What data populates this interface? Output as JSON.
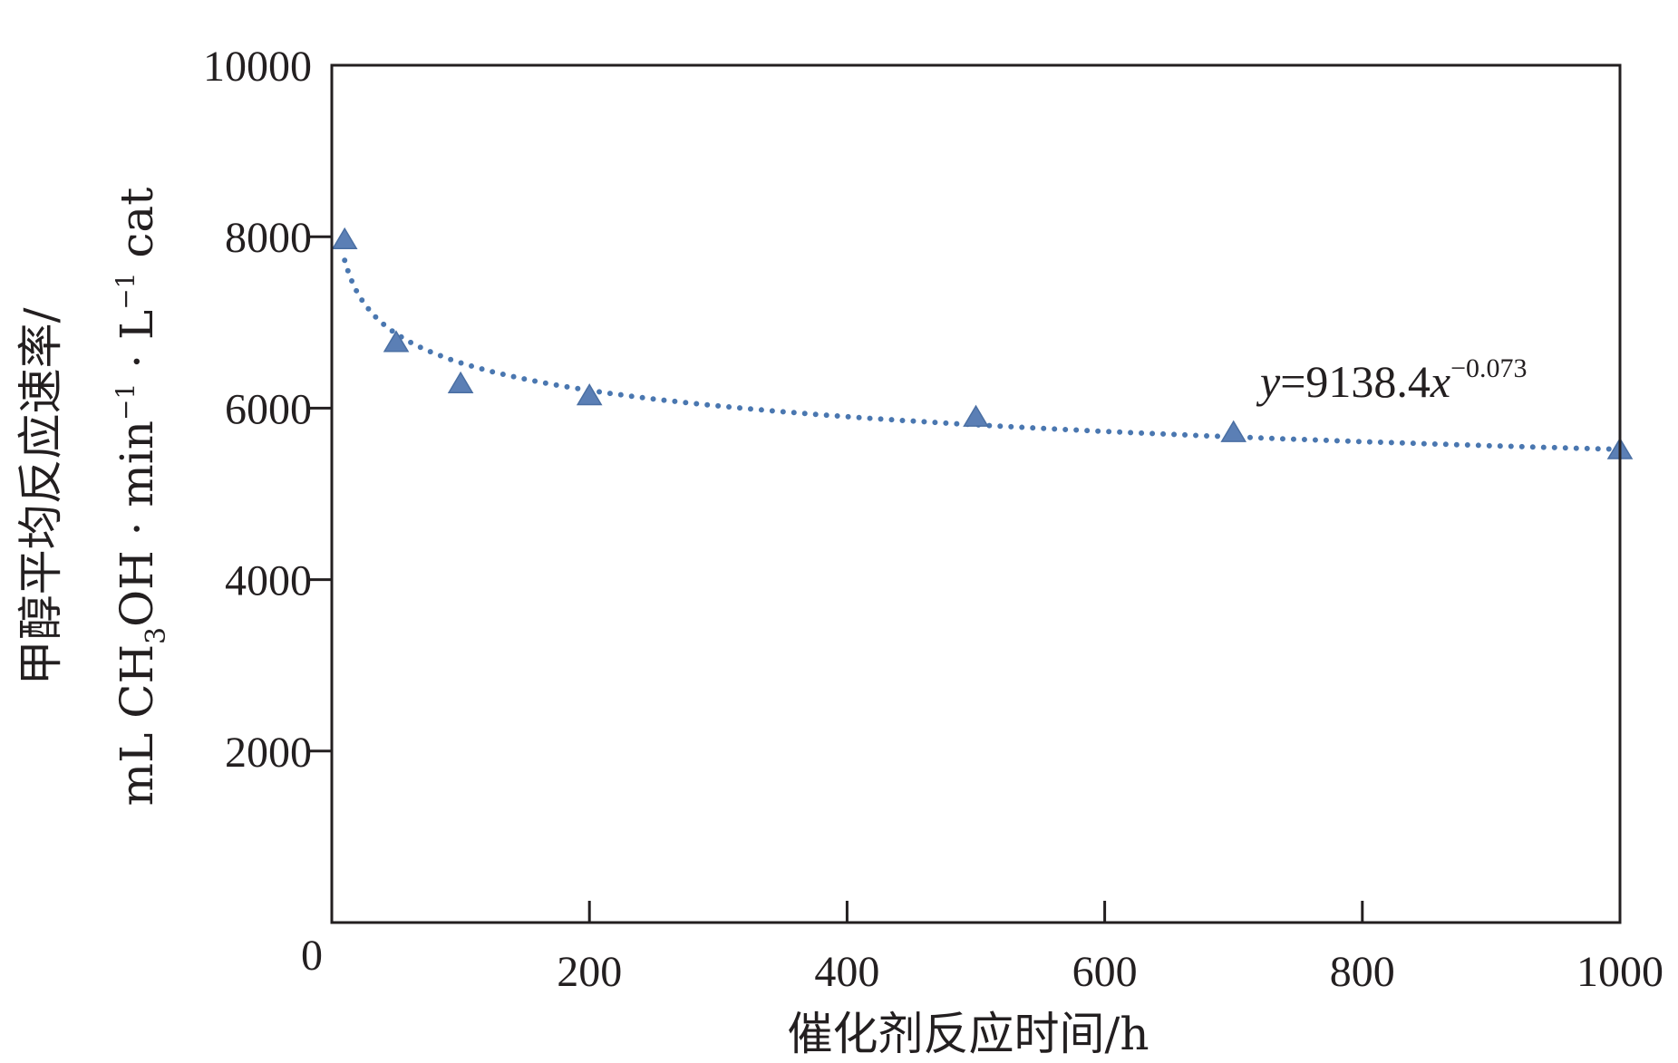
{
  "chart_data": {
    "type": "scatter",
    "xlabel": "催化剂反应时间/h",
    "ylabel": {
      "line1": "甲醇平均反应速率/",
      "line2_parts": {
        "a": "mL CH",
        "sub": "3",
        "b": "OH · min",
        "sup1": "−1",
        "c": " · L",
        "sup2": "−1",
        "d": " cat"
      }
    },
    "xlim": [
      0,
      1000
    ],
    "ylim": [
      0,
      10000
    ],
    "x_ticks": [
      0,
      200,
      400,
      600,
      800,
      1000
    ],
    "y_ticks": [
      2000,
      4000,
      6000,
      8000,
      10000
    ],
    "grid": false,
    "series": [
      {
        "marker": "triangle",
        "color": "#5b7fb5",
        "x": [
          10,
          50,
          100,
          200,
          500,
          700,
          1000
        ],
        "y": [
          7950,
          6750,
          6270,
          6130,
          5880,
          5700,
          5500
        ]
      }
    ],
    "trendline": {
      "type": "power",
      "a": 9138.4,
      "b": -0.073,
      "x_range": [
        10,
        1000
      ],
      "style": "dotted",
      "color": "#4a77b0"
    },
    "annotation": {
      "y": "y",
      "eq": "=9138.4",
      "x": "x",
      "exp": "−0.073"
    }
  }
}
